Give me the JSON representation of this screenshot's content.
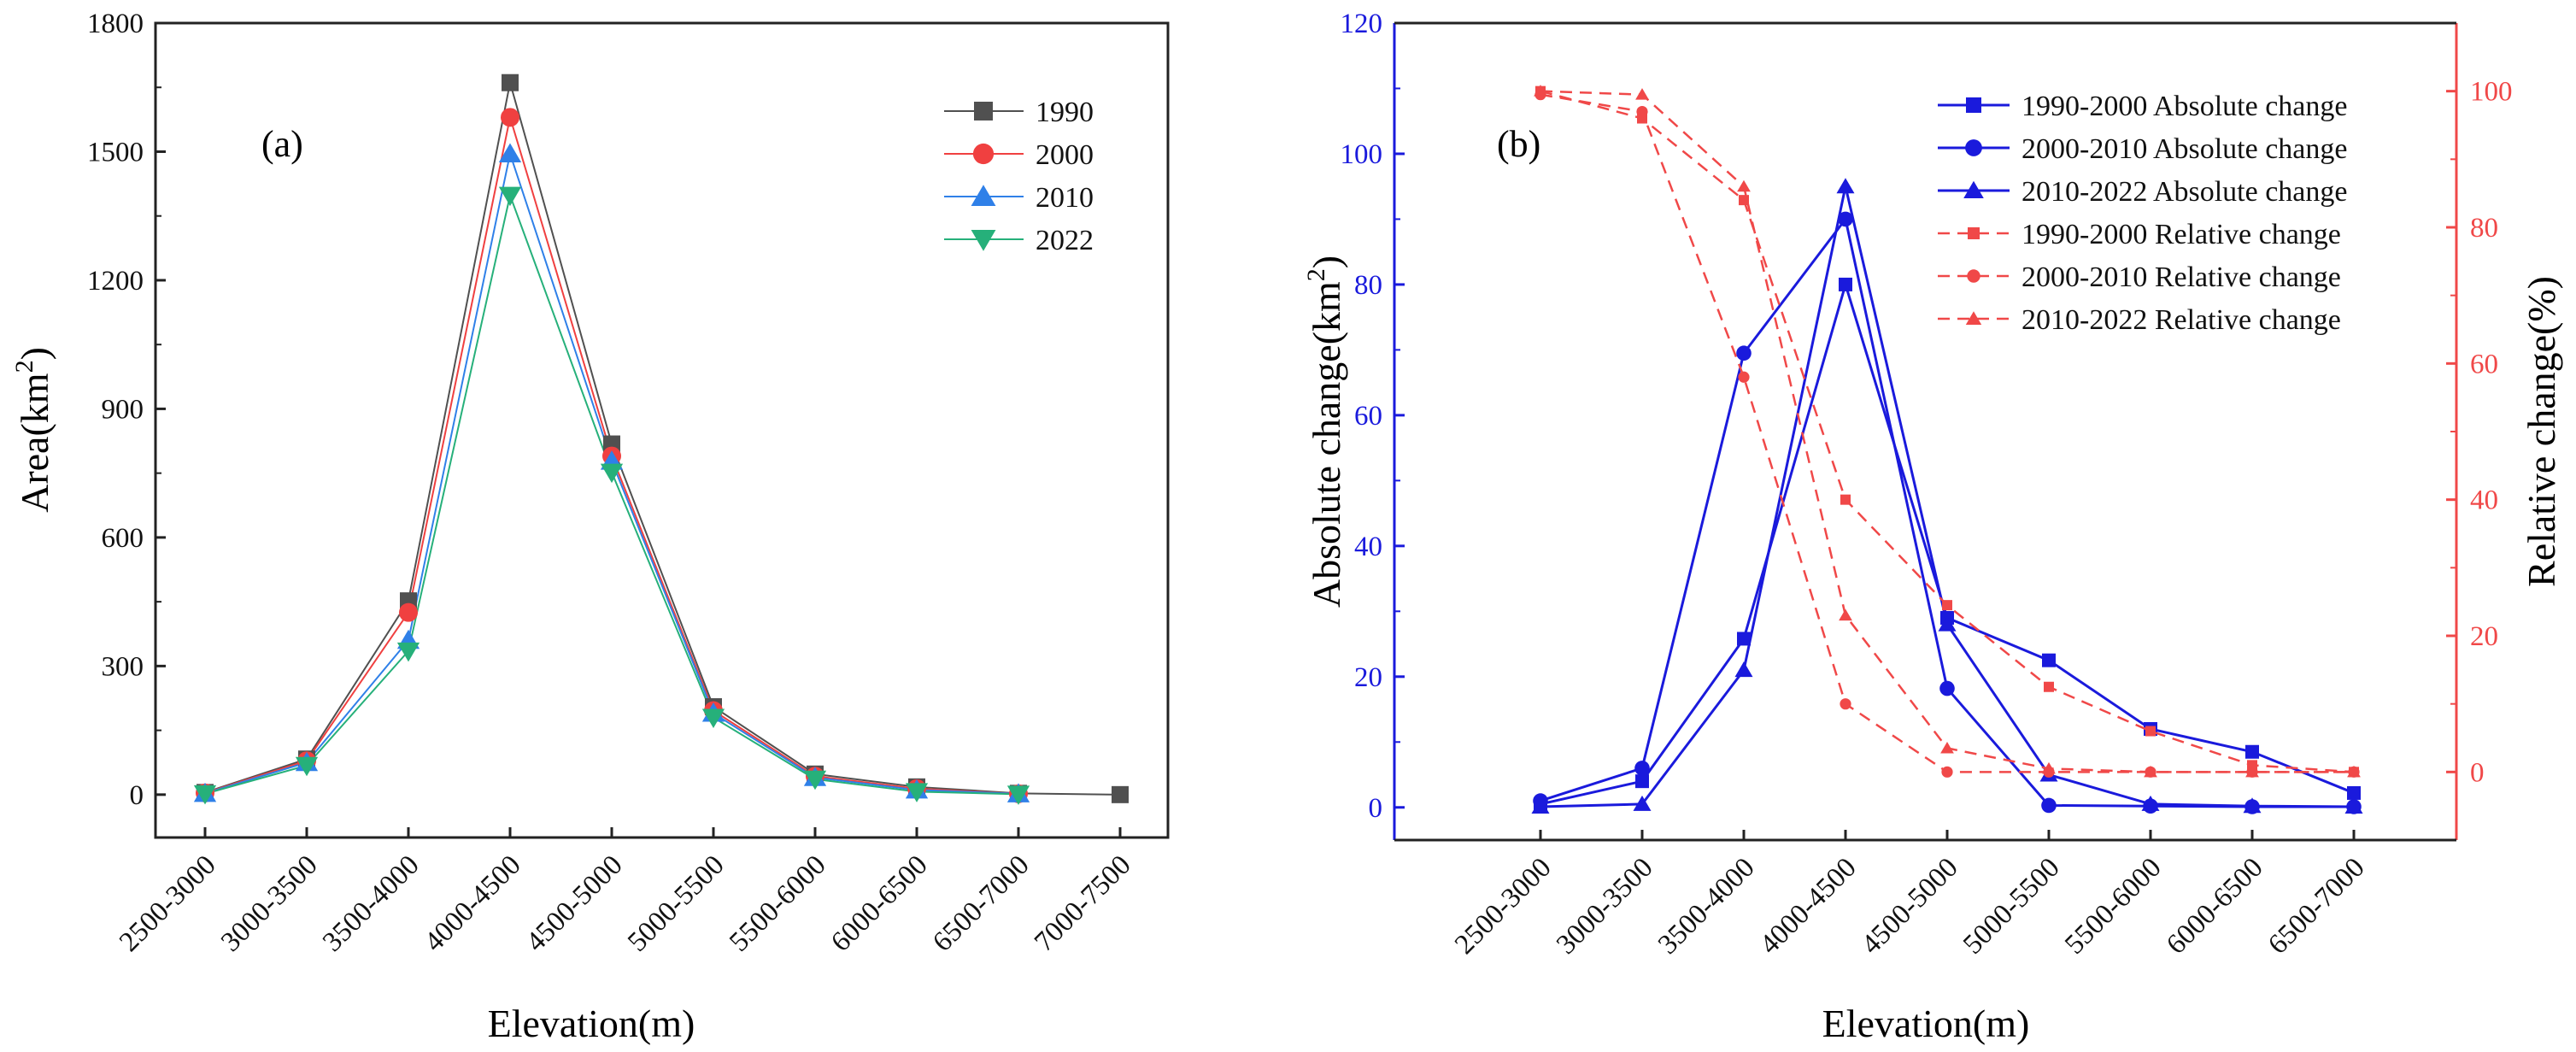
{
  "chart_data": [
    {
      "panel": "(a)",
      "type": "line",
      "xlabel": "Elevation(m)",
      "ylabel": {
        "base": "Area(km",
        "sup": "2",
        "close": ")"
      },
      "categories": [
        "2500-3000",
        "3000-3500",
        "3500-4000",
        "4000-4500",
        "4500-5000",
        "5000-5500",
        "5500-6000",
        "6000-6500",
        "6500-7000",
        "7000-7500"
      ],
      "ylim": [
        -100,
        1800
      ],
      "yticks": [
        0,
        300,
        600,
        900,
        1200,
        1500,
        1800
      ],
      "series": [
        {
          "name": "1990",
          "marker": "square",
          "color": "#505050",
          "values": [
            5,
            83,
            452,
            1661,
            818,
            205,
            48,
            18,
            3,
            0
          ]
        },
        {
          "name": "2000",
          "marker": "circle",
          "color": "#f04040",
          "values": [
            4,
            79,
            425,
            1580,
            790,
            196,
            43,
            14,
            2,
            null
          ]
        },
        {
          "name": "2010",
          "marker": "triangle-up",
          "color": "#2f80e8",
          "values": [
            3,
            75,
            360,
            1495,
            778,
            190,
            40,
            11,
            2,
            null
          ]
        },
        {
          "name": "2022",
          "marker": "triangle-down",
          "color": "#26b07a",
          "values": [
            2,
            68,
            335,
            1398,
            752,
            180,
            36,
            7,
            1,
            null
          ]
        }
      ],
      "legend_position": "top-right"
    },
    {
      "panel": "(b)",
      "type": "line",
      "xlabel": "Elevation(m)",
      "ylabel_left": {
        "base": "Absolute change(km",
        "sup": "2",
        "close": ")"
      },
      "ylabel_right": "Relative change(%)",
      "categories": [
        "2500-3000",
        "3000-3500",
        "3500-4000",
        "4000-4500",
        "4500-5000",
        "5000-5500",
        "5500-6000",
        "6000-6500",
        "6500-7000"
      ],
      "ylim_left": [
        -5,
        120
      ],
      "yticks_left": [
        0,
        20,
        40,
        60,
        80,
        100,
        120
      ],
      "ylim_right": [
        -10,
        110
      ],
      "yticks_right": [
        0,
        20,
        40,
        60,
        80,
        100
      ],
      "left_color": "#1a1adc",
      "right_color": "#f04848",
      "series": [
        {
          "name": "1990-2000 Absolute change",
          "axis": "left",
          "marker": "square",
          "dash": false,
          "values": [
            0.5,
            4,
            25.8,
            80,
            29,
            22.5,
            12,
            8.5,
            2.2
          ]
        },
        {
          "name": "2000-2010 Absolute change",
          "axis": "left",
          "marker": "circle",
          "dash": false,
          "values": [
            1,
            6,
            69.5,
            90,
            18.2,
            0.3,
            0.2,
            0.1,
            0.1
          ]
        },
        {
          "name": "2010-2022 Absolute change",
          "axis": "left",
          "marker": "triangle-up",
          "dash": false,
          "values": [
            0.1,
            0.5,
            21,
            95,
            28,
            5,
            0.5,
            0.2,
            0.1
          ]
        },
        {
          "name": "1990-2000 Relative change",
          "axis": "right",
          "marker": "square",
          "dash": true,
          "values": [
            100,
            96,
            84,
            40,
            24.5,
            12.5,
            6,
            1,
            0
          ]
        },
        {
          "name": "2000-2010 Relative change",
          "axis": "right",
          "marker": "circle",
          "dash": true,
          "values": [
            99.5,
            97,
            58,
            10,
            0,
            0,
            0,
            0,
            0
          ]
        },
        {
          "name": "2010-2022 Relative change",
          "axis": "right",
          "marker": "triangle-up",
          "dash": true,
          "values": [
            100,
            99.5,
            86,
            23,
            3.5,
            0.5,
            0,
            0,
            0
          ]
        }
      ],
      "legend_position": "top-right"
    }
  ]
}
